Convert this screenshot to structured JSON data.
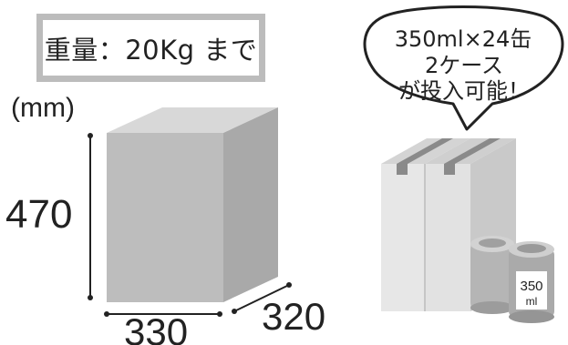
{
  "weight_label": "重量：20Kg まで",
  "unit": "(mm)",
  "dimensions": {
    "height": "470",
    "width": "330",
    "depth": "320"
  },
  "bubble": {
    "line1": "350ml×24缶",
    "line2": "2ケース",
    "line3": "が投入可能！"
  },
  "can": {
    "volume": "350",
    "unit": "ml"
  },
  "colors": {
    "box_front": "#bdbdbd",
    "box_side": "#a9a9a9",
    "box_top": "#d8d8d8",
    "carton": "#e7e7e7",
    "tape": "#8a8a8a",
    "can": "#b0b0b0",
    "frame": "#bcbcbc",
    "ink": "#222222"
  }
}
